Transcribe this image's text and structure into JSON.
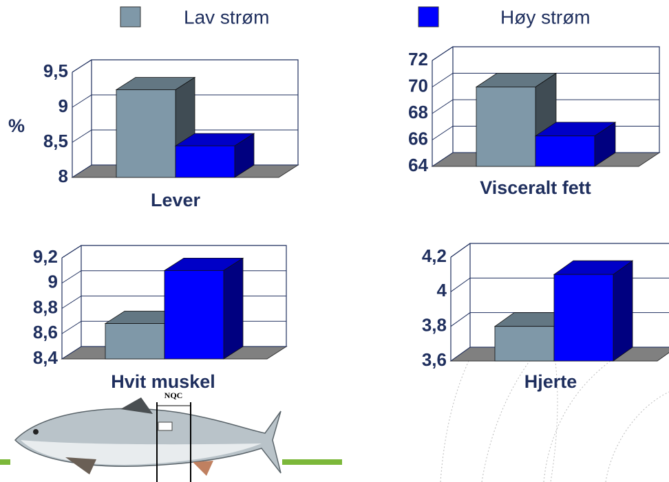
{
  "chart_data": [
    {
      "type": "bar3d",
      "title": "Lever",
      "y_label": "%",
      "categories": [
        ""
      ],
      "series": [
        {
          "name": "Lav strøm",
          "color": "#7f98a8",
          "values": [
            9.25
          ]
        },
        {
          "name": "Høy strøm",
          "color": "#0000ff",
          "values": [
            8.45
          ]
        }
      ],
      "ylim": [
        8,
        9.5
      ],
      "yticks": [
        8,
        {
          "value": 8.5,
          "label": "8,5"
        },
        9,
        {
          "value": 9.5,
          "label": "9,5"
        }
      ],
      "grid": true
    },
    {
      "type": "bar3d",
      "title": "Visceralt fett",
      "categories": [
        ""
      ],
      "series": [
        {
          "name": "Lav strøm",
          "color": "#7f98a8",
          "values": [
            70
          ]
        },
        {
          "name": "Høy strøm",
          "color": "#0000ff",
          "values": [
            66.3
          ]
        }
      ],
      "ylim": [
        64,
        72
      ],
      "yticks": [
        64,
        66,
        68,
        70,
        72
      ],
      "grid": true
    },
    {
      "type": "bar3d",
      "title": "Hvit muskel",
      "categories": [
        ""
      ],
      "series": [
        {
          "name": "Lav strøm",
          "color": "#7f98a8",
          "values": [
            8.68
          ]
        },
        {
          "name": "Høy strøm",
          "color": "#0000ff",
          "values": [
            9.1
          ]
        }
      ],
      "ylim": [
        8.4,
        9.2
      ],
      "yticks": [
        {
          "value": 8.4,
          "label": "8,4"
        },
        {
          "value": 8.6,
          "label": "8,6"
        },
        {
          "value": 8.8,
          "label": "8,8"
        },
        9,
        {
          "value": 9.2,
          "label": "9,2"
        }
      ],
      "grid": true
    },
    {
      "type": "bar3d",
      "title": "Hjerte",
      "categories": [
        ""
      ],
      "series": [
        {
          "name": "Lav strøm",
          "color": "#7f98a8",
          "values": [
            3.8
          ]
        },
        {
          "name": "Høy strøm",
          "color": "#0000ff",
          "values": [
            4.1
          ]
        }
      ],
      "ylim": [
        3.6,
        4.2
      ],
      "yticks": [
        {
          "value": 3.6,
          "label": "3,6"
        },
        {
          "value": 3.8,
          "label": "3,8"
        },
        4,
        {
          "value": 4.2,
          "label": "4,2"
        }
      ],
      "grid": true
    }
  ],
  "figure_label": "NQC"
}
